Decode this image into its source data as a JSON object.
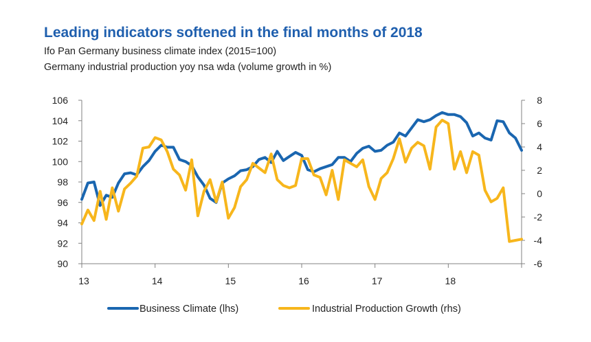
{
  "chart_data": {
    "type": "line",
    "title": "Leading indicators softened in the final months of 2018",
    "subtitles": [
      "Ifo Pan Germany business climate index (2015=100)",
      "Germany industrial production yoy nsa wda (volume growth in %)"
    ],
    "x_ticks": [
      {
        "value": 13,
        "label": "13"
      },
      {
        "value": 14,
        "label": "14"
      },
      {
        "value": 15,
        "label": "15"
      },
      {
        "value": 16,
        "label": "16"
      },
      {
        "value": 17,
        "label": "17"
      },
      {
        "value": 18,
        "label": "18"
      }
    ],
    "xlim": [
      13,
      19
    ],
    "y_left": {
      "lim": [
        90,
        106
      ],
      "ticks": [
        "90",
        "92",
        "94",
        "96",
        "98",
        "100",
        "102",
        "104",
        "106"
      ]
    },
    "y_right": {
      "lim": [
        -6,
        8
      ],
      "ticks": [
        "-6",
        "-4",
        "-2",
        "0",
        "2",
        "4",
        "6",
        "8"
      ]
    },
    "legend_position": "bottom",
    "series": [
      {
        "name": "Business Climate (lhs)",
        "axis": "left",
        "color": "#1a66b0",
        "values": [
          96.3,
          97.9,
          98.0,
          95.7,
          96.7,
          96.5,
          97.9,
          98.8,
          98.9,
          98.7,
          99.5,
          100.1,
          101.0,
          101.6,
          101.4,
          101.4,
          100.2,
          100.0,
          99.6,
          98.5,
          97.7,
          96.4,
          96.0,
          97.9,
          98.3,
          98.6,
          99.1,
          99.2,
          99.5,
          100.2,
          100.4,
          99.9,
          101.0,
          100.1,
          100.5,
          100.9,
          100.6,
          99.2,
          99.0,
          99.3,
          99.5,
          99.7,
          100.4,
          100.4,
          100.0,
          100.8,
          101.3,
          101.5,
          101.0,
          101.1,
          101.6,
          101.9,
          102.8,
          102.5,
          103.3,
          104.1,
          103.9,
          104.1,
          104.5,
          104.8,
          104.6,
          104.6,
          104.4,
          103.8,
          102.5,
          102.8,
          102.3,
          102.1,
          104.0,
          103.9,
          102.8,
          102.3,
          101.1
        ]
      },
      {
        "name": "Industrial Production Growth (rhs)",
        "axis": "right",
        "color": "#f7b61c",
        "values": [
          -2.6,
          -1.4,
          -2.3,
          0.2,
          -2.2,
          0.5,
          -1.5,
          0.4,
          0.9,
          1.5,
          3.9,
          4.0,
          4.8,
          4.6,
          3.6,
          2.1,
          1.6,
          0.3,
          2.9,
          -1.9,
          0.2,
          1.2,
          -0.7,
          1.0,
          -2.1,
          -1.2,
          0.6,
          1.2,
          2.6,
          2.2,
          1.8,
          3.4,
          1.2,
          0.7,
          0.5,
          0.7,
          3.0,
          3.0,
          1.6,
          1.4,
          -0.1,
          2.0,
          -0.5,
          2.9,
          2.6,
          2.3,
          2.9,
          0.6,
          -0.5,
          1.3,
          1.8,
          3.0,
          4.7,
          2.7,
          3.9,
          4.4,
          4.1,
          2.1,
          5.7,
          6.3,
          6.0,
          2.1,
          3.6,
          1.8,
          3.6,
          3.3,
          0.3,
          -0.7,
          -0.4,
          0.5,
          -4.1,
          -4.0,
          -3.9
        ]
      }
    ]
  }
}
